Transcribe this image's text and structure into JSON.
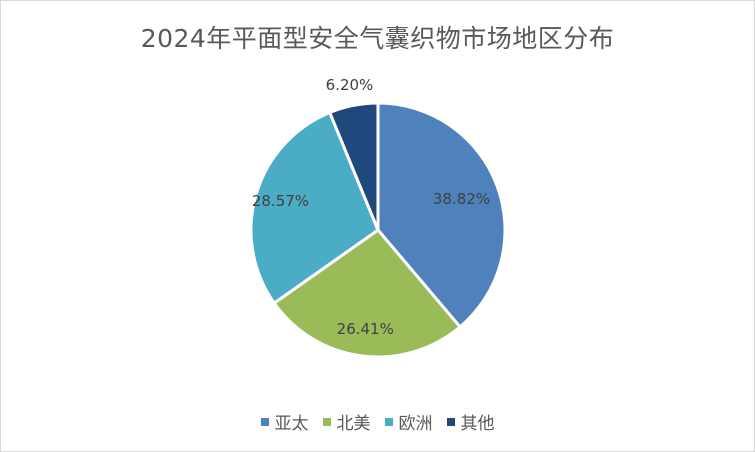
{
  "chart_data": {
    "type": "pie",
    "title": "2024年平面型安全气囊织物市场地区分布",
    "categories": [
      "亚太",
      "北美",
      "欧洲",
      "其他"
    ],
    "values": [
      38.82,
      26.41,
      28.57,
      6.2
    ],
    "data_labels": [
      "38.82%",
      "26.41%",
      "28.57%",
      "6.20%"
    ],
    "colors": [
      "#4f81bd",
      "#9bbb59",
      "#4bacc6",
      "#1f497d"
    ],
    "start_angle": "12 o'clock, clockwise",
    "legend_position": "bottom"
  }
}
